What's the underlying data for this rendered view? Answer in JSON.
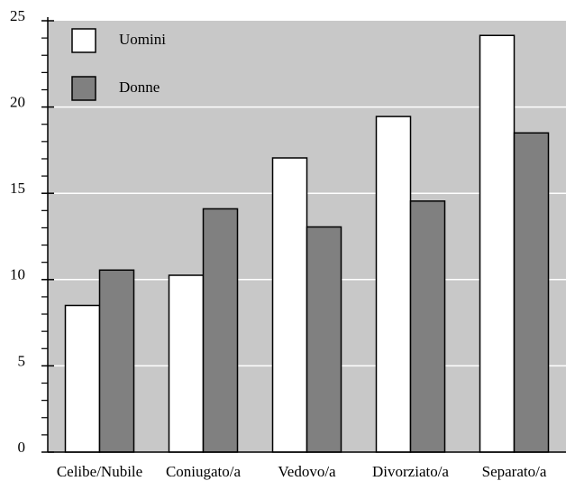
{
  "chart_data": {
    "type": "bar",
    "categories": [
      "Celibe/Nubile",
      "Coniugato/a",
      "Vedovo/a",
      "Divorziato/a",
      "Separato/a"
    ],
    "series": [
      {
        "name": "Uomini",
        "color": "#ffffff",
        "values": [
          8.5,
          10.25,
          17.05,
          19.45,
          24.15
        ]
      },
      {
        "name": "Donne",
        "color": "#808080",
        "values": [
          10.55,
          14.1,
          13.05,
          14.55,
          18.5
        ]
      }
    ],
    "ylim": [
      0,
      25
    ],
    "yticks": [
      0,
      5,
      10,
      15,
      20,
      25
    ],
    "grid": true,
    "legend": "upper left"
  }
}
